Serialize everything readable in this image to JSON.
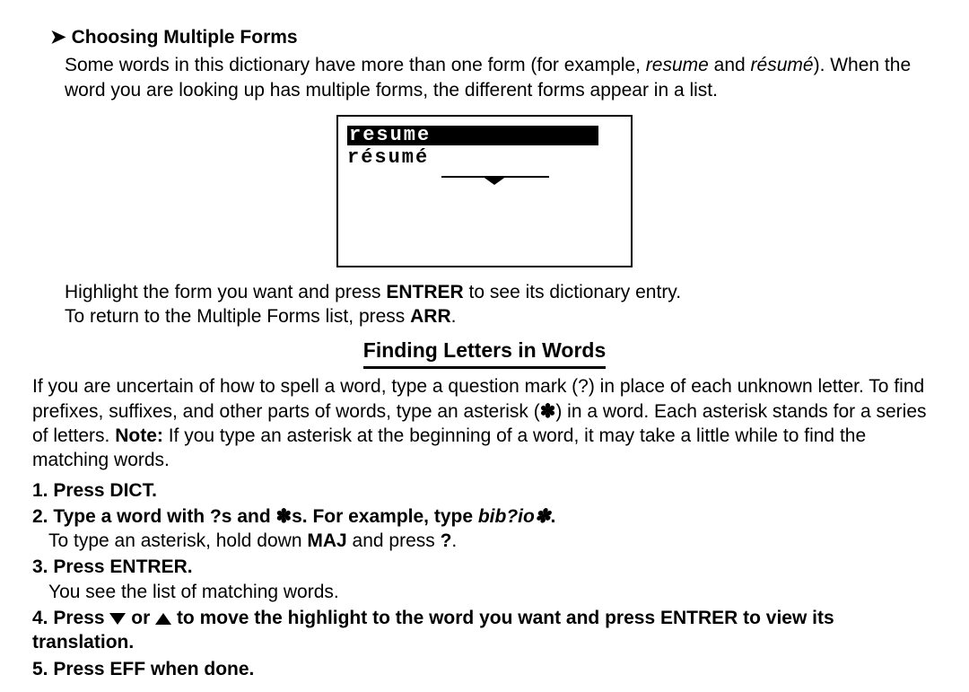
{
  "section1": {
    "header": "Choosing Multiple Forms",
    "intro_part1": "Some words in this dictionary have more than one form (for example, ",
    "intro_italic1": "resume",
    "intro_part2": " and ",
    "intro_italic2": "résumé",
    "intro_part3": "). When the word you are looking up has multiple forms, the different forms appear in a list.",
    "screen_row1": "resume",
    "screen_row2": "résumé",
    "after1_a": "Highlight the form you want and press ",
    "after1_key1": "ENTRER",
    "after1_b": " to see its dictionary entry.",
    "after2_a": "To return to the Multiple Forms list, press ",
    "after2_key": "ARR",
    "after2_b": "."
  },
  "section2": {
    "title": "Finding Letters in Words",
    "intro_a": "If you are uncertain of how to spell a word, type a question mark (?) in place of each unknown letter. To find prefixes, suffixes, and other parts of words, type an asterisk (",
    "intro_ast": "✽",
    "intro_b": ") in a word. Each asterisk stands for a series of letters. ",
    "intro_note": "Note:",
    "intro_c": " If you type an asterisk at the beginning of a word, it may take a little while to find the matching words.",
    "steps": {
      "s1": "1. Press DICT.",
      "s2_a": "2. Type a word with ?s and ",
      "s2_ast1": "✽",
      "s2_b": "s. For example, type ",
      "s2_example": "bib?io",
      "s2_ast2": "✽",
      "s2_c": ".",
      "s2_sub_a": "To type an asterisk, hold down ",
      "s2_sub_key": "MAJ",
      "s2_sub_b": " and press ",
      "s2_sub_q": "?",
      "s2_sub_c": ".",
      "s3": "3. Press ENTRER.",
      "s3_sub": "You see the list of matching words.",
      "s4_a": "4. Press ",
      "s4_or": " or ",
      "s4_b": " to move the highlight to the word you want and press ENTRER to view its translation.",
      "s5": "5. Press EFF when done."
    }
  }
}
